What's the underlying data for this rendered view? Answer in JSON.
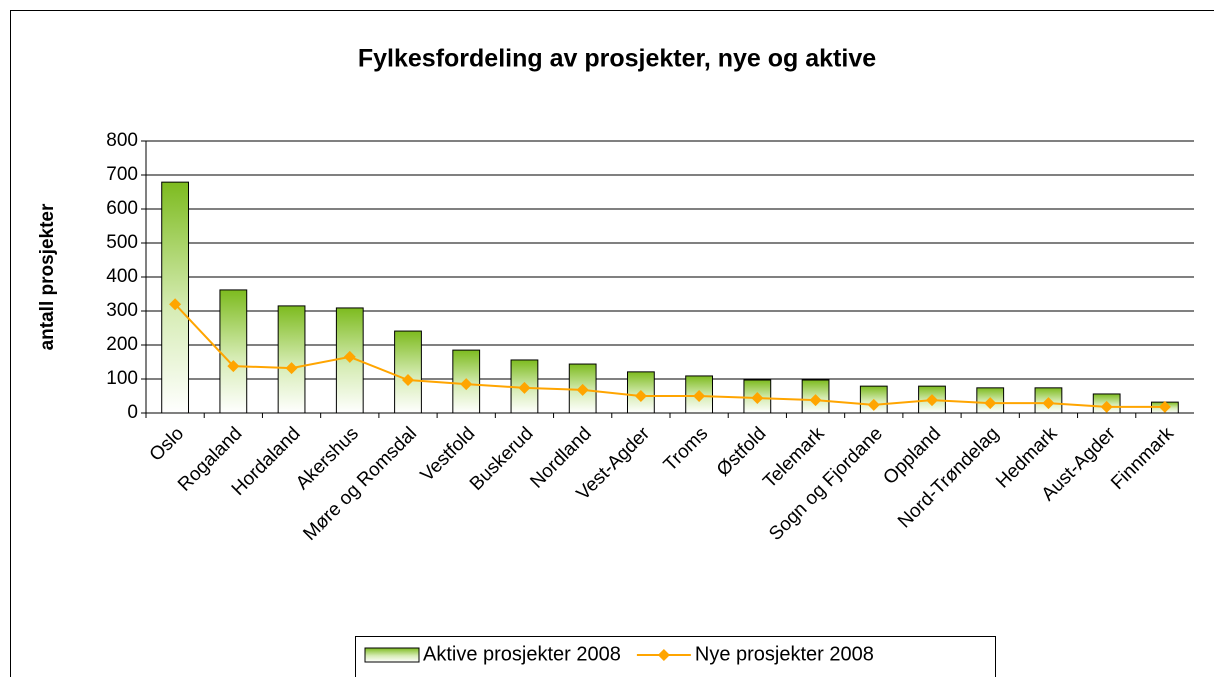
{
  "chart_data": {
    "type": "bar_line",
    "title": "Fylkesfordeling av prosjekter, nye og aktive",
    "y_label": "antall prosjekter",
    "categories": [
      "Oslo",
      "Rogaland",
      "Hordaland",
      "Akershus",
      "Møre og Romsdal",
      "Vestfold",
      "Buskerud",
      "Nordland",
      "Vest-Agder",
      "Troms",
      "Østfold",
      "Telemark",
      "Sogn og Fjordane",
      "Oppland",
      "Nord-Trøndelag",
      "Hedmark",
      "Aust-Agder",
      "Finnmark"
    ],
    "series": [
      {
        "name": "Aktive prosjekter 2008",
        "type": "bar",
        "color": "#7dbb1f",
        "values": [
          679,
          362,
          315,
          309,
          241,
          185,
          156,
          144,
          121,
          109,
          97,
          97,
          79,
          79,
          74,
          74,
          56,
          32
        ]
      },
      {
        "name": "Nye prosjekter 2008",
        "type": "line",
        "color": "#ffa500",
        "values": [
          320,
          138,
          132,
          165,
          97,
          85,
          74,
          68,
          50,
          50,
          44,
          38,
          24,
          38,
          29,
          29,
          18,
          18
        ]
      }
    ],
    "ylim": [
      0,
      800
    ],
    "yticks": [
      0,
      100,
      200,
      300,
      400,
      500,
      600,
      700,
      800
    ],
    "grid": true,
    "legend": "bottom"
  }
}
